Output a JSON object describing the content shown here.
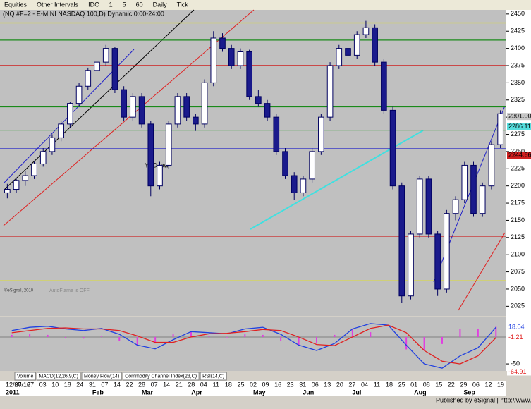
{
  "window": {
    "title": "(NQ #F=2 - E-MINI NASDAQ 100,D) Dynamic,0:00-24:00",
    "toolbar": [
      "Equities",
      "Other Intervals",
      "IDC",
      "1",
      "5",
      "60",
      "Daily",
      "Tick"
    ],
    "tabs": [
      "Volume",
      "MACD(12,26,9,C)",
      "Money Flow(14)",
      "Commodity Channel Index(23,C)",
      "RSI(14,C)"
    ],
    "footer": "Published by eSignal | http://www.esignal.com",
    "copyright": "©eSignal, 2010",
    "autoflame": "AutoFlame is OFF"
  },
  "chart_data": [
    {
      "type": "candlestick",
      "ylim": [
        2011,
        2456
      ],
      "yticks": [
        2025,
        2050,
        2075,
        2100,
        2125,
        2150,
        2175,
        2200,
        2225,
        2250,
        2275,
        2300,
        2325,
        2350,
        2375,
        2400,
        2425,
        2450
      ],
      "series": [
        {
          "name": "NQ",
          "values": [
            [
              2190,
              2203,
              2182,
              2195
            ],
            [
              2195,
              2212,
              2190,
              2208
            ],
            [
              2208,
              2222,
              2200,
              2215
            ],
            [
              2215,
              2235,
              2210,
              2232
            ],
            [
              2232,
              2255,
              2228,
              2250
            ],
            [
              2250,
              2275,
              2245,
              2270
            ],
            [
              2270,
              2295,
              2265,
              2290
            ],
            [
              2290,
              2322,
              2285,
              2320
            ],
            [
              2320,
              2350,
              2315,
              2345
            ],
            [
              2345,
              2372,
              2340,
              2368
            ],
            [
              2368,
              2390,
              2360,
              2380
            ],
            [
              2380,
              2405,
              2375,
              2400
            ],
            [
              2400,
              2402,
              2335,
              2340
            ],
            [
              2340,
              2345,
              2295,
              2300
            ],
            [
              2300,
              2335,
              2295,
              2330
            ],
            [
              2330,
              2335,
              2285,
              2290
            ],
            [
              2290,
              2295,
              2185,
              2200
            ],
            [
              2200,
              2235,
              2195,
              2230
            ],
            [
              2230,
              2295,
              2225,
              2290
            ],
            [
              2290,
              2335,
              2285,
              2330
            ],
            [
              2330,
              2335,
              2295,
              2300
            ],
            [
              2300,
              2305,
              2280,
              2290
            ],
            [
              2290,
              2355,
              2285,
              2350
            ],
            [
              2350,
              2425,
              2345,
              2415
            ],
            [
              2415,
              2422,
              2395,
              2400
            ],
            [
              2400,
              2405,
              2370,
              2375
            ],
            [
              2375,
              2400,
              2370,
              2395
            ],
            [
              2395,
              2398,
              2325,
              2330
            ],
            [
              2330,
              2340,
              2315,
              2320
            ],
            [
              2320,
              2325,
              2295,
              2300
            ],
            [
              2300,
              2305,
              2245,
              2250
            ],
            [
              2250,
              2255,
              2210,
              2215
            ],
            [
              2215,
              2220,
              2180,
              2190
            ],
            [
              2190,
              2215,
              2185,
              2210
            ],
            [
              2210,
              2255,
              2205,
              2250
            ],
            [
              2250,
              2305,
              2245,
              2300
            ],
            [
              2300,
              2380,
              2295,
              2375
            ],
            [
              2375,
              2405,
              2370,
              2400
            ],
            [
              2400,
              2410,
              2385,
              2390
            ],
            [
              2390,
              2425,
              2385,
              2420
            ],
            [
              2420,
              2440,
              2415,
              2430
            ],
            [
              2430,
              2435,
              2375,
              2380
            ],
            [
              2380,
              2385,
              2305,
              2310
            ],
            [
              2310,
              2315,
              2195,
              2200
            ],
            [
              2200,
              2205,
              2030,
              2040
            ],
            [
              2040,
              2135,
              2035,
              2130
            ],
            [
              2130,
              2215,
              2125,
              2210
            ],
            [
              2210,
              2215,
              2125,
              2130
            ],
            [
              2130,
              2135,
              2040,
              2050
            ],
            [
              2050,
              2165,
              2045,
              2160
            ],
            [
              2160,
              2185,
              2150,
              2180
            ],
            [
              2180,
              2235,
              2175,
              2230
            ],
            [
              2230,
              2235,
              2155,
              2160
            ],
            [
              2160,
              2205,
              2155,
              2200
            ],
            [
              2200,
              2265,
              2195,
              2260
            ],
            [
              2260,
              2310,
              2255,
              2305
            ]
          ]
        }
      ],
      "levels": [
        {
          "value": 2437,
          "color": "#e8e800"
        },
        {
          "value": 2412,
          "color": "#1a8a1a"
        },
        {
          "value": 2375,
          "color": "#d00000"
        },
        {
          "value": 2315,
          "color": "#1a8a1a"
        },
        {
          "value": 2281,
          "color": "#5aa55a"
        },
        {
          "value": 2254,
          "color": "#2020c8"
        },
        {
          "value": 2127,
          "color": "#d00000"
        },
        {
          "value": 2062,
          "color": "#e8e800"
        }
      ],
      "price_labels": [
        {
          "value": 2301,
          "label": "2301.00",
          "color": "#c8c8c8"
        },
        {
          "value": 2286.11,
          "label": "2286.11",
          "color": "#55dddd"
        },
        {
          "value": 2244.66,
          "label": "2244.66",
          "color": "#d02020"
        }
      ],
      "annotation": "YTD low",
      "date_labels": [
        "12/07/10",
        "20",
        "27",
        "03",
        "10",
        "18",
        "24",
        "31",
        "07",
        "14",
        "22",
        "28",
        "07",
        "14",
        "21",
        "28",
        "04",
        "11",
        "18",
        "25",
        "02",
        "09",
        "16",
        "23",
        "31",
        "06",
        "13",
        "20",
        "27",
        "04",
        "11",
        "18",
        "25",
        "01",
        "08",
        "15",
        "22",
        "29",
        "06",
        "12",
        "19"
      ],
      "month_labels": [
        "2011",
        "Feb",
        "Mar",
        "Apr",
        "May",
        "Jun",
        "Jul",
        "Aug",
        "Sep"
      ]
    },
    {
      "type": "line",
      "ylim": [
        -63,
        34
      ],
      "yticks": [
        -50
      ],
      "series": [
        {
          "name": "MACD",
          "color": "#2040e0",
          "values": [
            12,
            18,
            20,
            15,
            12,
            16,
            5,
            -15,
            -22,
            -5,
            10,
            8,
            6,
            15,
            18,
            5,
            -15,
            -25,
            -12,
            15,
            25,
            22,
            -15,
            -50,
            -58,
            -35,
            -20,
            18.04
          ]
        },
        {
          "name": "Signal",
          "color": "#e02020",
          "values": [
            8,
            12,
            16,
            17,
            15,
            15,
            12,
            2,
            -10,
            -10,
            0,
            6,
            7,
            10,
            14,
            12,
            0,
            -14,
            -16,
            0,
            16,
            22,
            8,
            -25,
            -45,
            -50,
            -35,
            -1.21
          ]
        }
      ],
      "histogram": {
        "color": "#e040e0",
        "values": [
          4,
          6,
          4,
          -2,
          -3,
          1,
          -7,
          -17,
          -12,
          5,
          10,
          2,
          -1,
          5,
          4,
          -7,
          -15,
          -11,
          4,
          15,
          9,
          0,
          -23,
          -25,
          -13,
          15,
          15,
          19
        ]
      },
      "value_labels": [
        "18.04",
        "-1.21",
        "-64.91"
      ],
      "label_values": [
        18.04,
        -1.21,
        -64.91
      ]
    }
  ]
}
